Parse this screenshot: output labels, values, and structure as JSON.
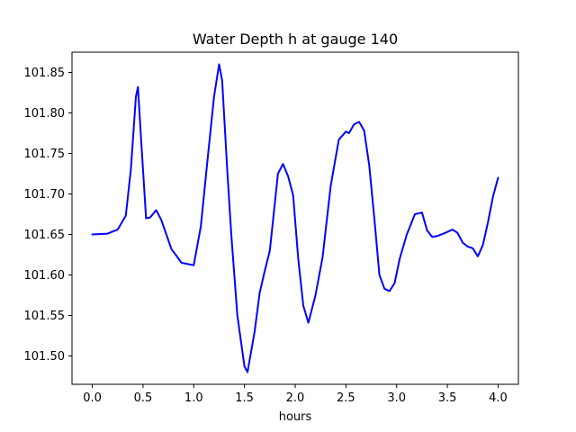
{
  "chart_data": {
    "type": "line",
    "title": "Water Depth h at gauge 140",
    "xlabel": "hours",
    "ylabel": "",
    "xlim": [
      -0.2,
      4.2
    ],
    "ylim": [
      101.465,
      101.875
    ],
    "xticks": [
      "0.0",
      "0.5",
      "1.0",
      "1.5",
      "2.0",
      "2.5",
      "3.0",
      "3.5",
      "4.0"
    ],
    "yticks": [
      "101.50",
      "101.55",
      "101.60",
      "101.65",
      "101.70",
      "101.75",
      "101.80",
      "101.85"
    ],
    "grid": false,
    "series": [
      {
        "color": "#0000ff",
        "x": [
          0.0,
          0.15,
          0.25,
          0.33,
          0.38,
          0.43,
          0.45,
          0.48,
          0.53,
          0.57,
          0.63,
          0.68,
          0.78,
          0.88,
          1.0,
          1.07,
          1.13,
          1.2,
          1.25,
          1.28,
          1.33,
          1.37,
          1.43,
          1.5,
          1.53,
          1.6,
          1.65,
          1.7,
          1.75,
          1.83,
          1.88,
          1.93,
          1.98,
          2.03,
          2.08,
          2.13,
          2.2,
          2.27,
          2.35,
          2.43,
          2.5,
          2.53,
          2.58,
          2.63,
          2.68,
          2.73,
          2.78,
          2.83,
          2.88,
          2.93,
          2.98,
          3.03,
          3.1,
          3.18,
          3.25,
          3.3,
          3.35,
          3.4,
          3.48,
          3.55,
          3.6,
          3.65,
          3.7,
          3.75,
          3.8,
          3.85,
          3.9,
          3.95,
          4.0
        ],
        "values": [
          101.65,
          101.651,
          101.656,
          101.673,
          101.73,
          101.82,
          101.832,
          101.77,
          101.67,
          101.671,
          101.68,
          101.668,
          101.632,
          101.615,
          101.612,
          101.66,
          101.735,
          101.82,
          101.86,
          101.84,
          101.73,
          101.65,
          101.55,
          101.487,
          101.48,
          101.53,
          101.578,
          101.605,
          101.63,
          101.725,
          101.737,
          101.722,
          101.698,
          101.62,
          101.562,
          101.541,
          101.575,
          101.622,
          101.71,
          101.767,
          101.777,
          101.775,
          101.786,
          101.789,
          101.778,
          101.735,
          101.67,
          101.6,
          101.583,
          101.58,
          101.59,
          101.62,
          101.65,
          101.675,
          101.677,
          101.655,
          101.647,
          101.648,
          101.652,
          101.656,
          101.652,
          101.64,
          101.635,
          101.633,
          101.623,
          101.637,
          101.665,
          101.697,
          101.72
        ]
      }
    ]
  }
}
